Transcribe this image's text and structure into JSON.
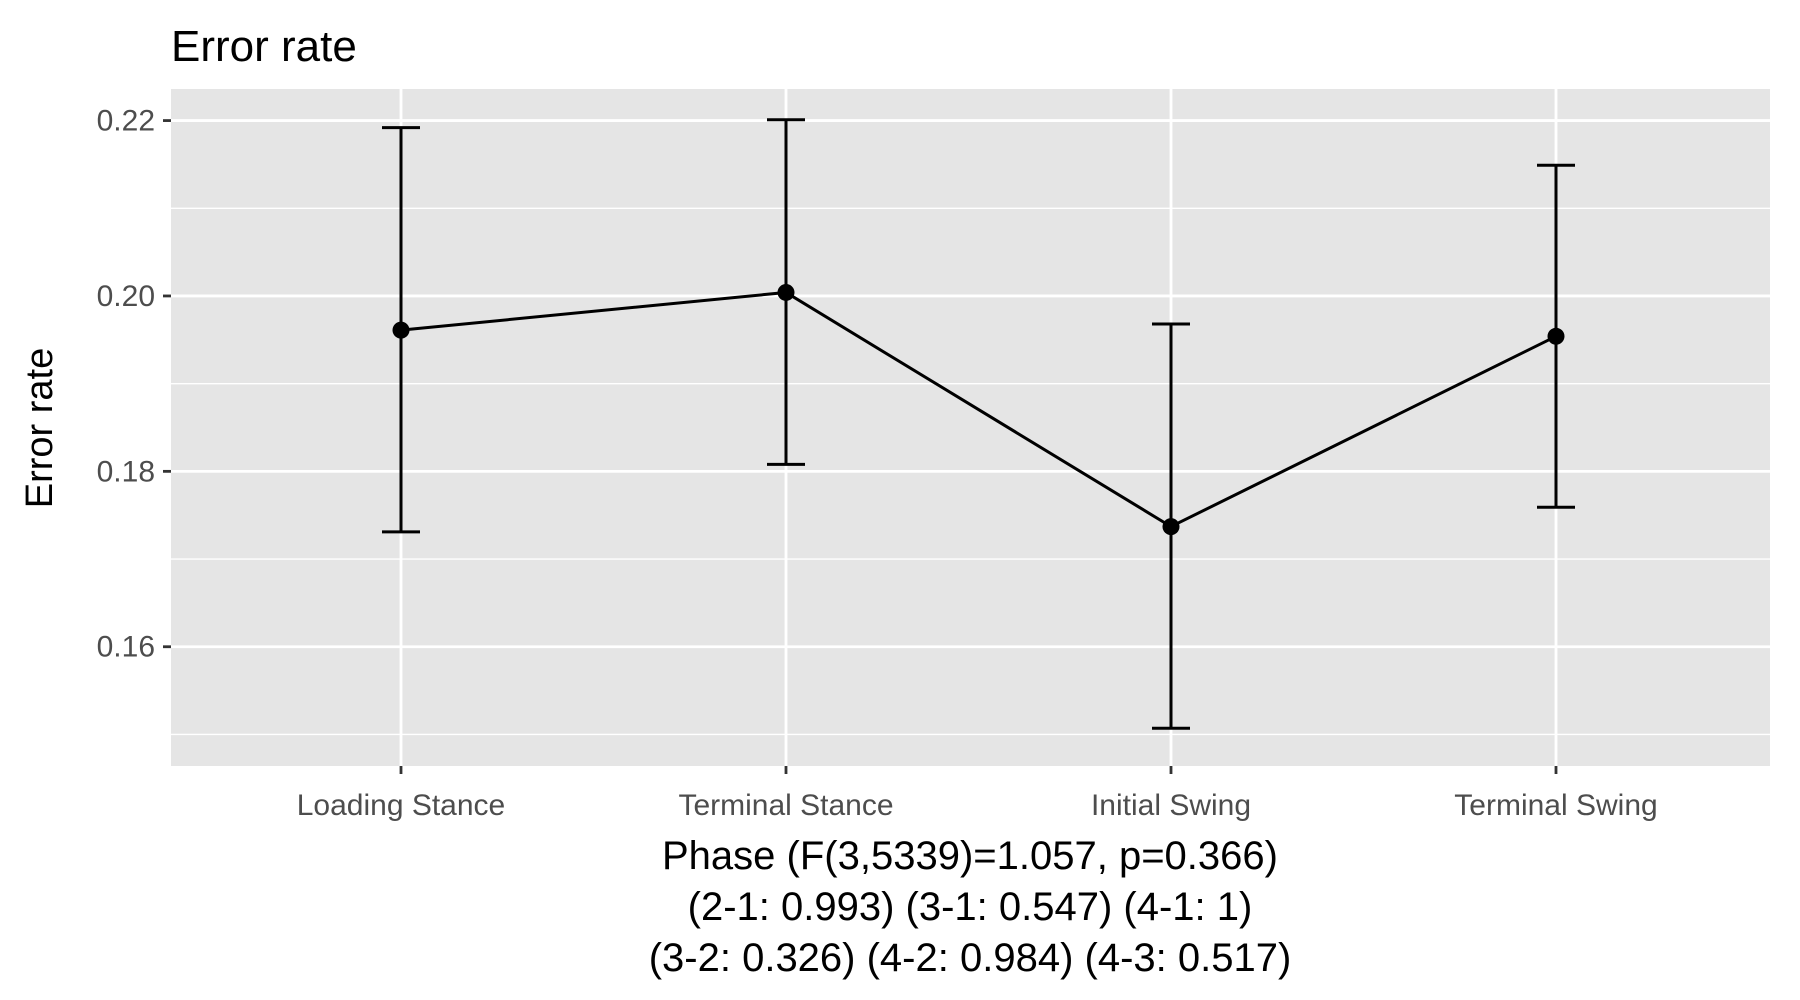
{
  "chart_data": {
    "type": "line",
    "title": "Error rate",
    "ylabel": "Error rate",
    "xlabel_lines": [
      "Phase (F(3,5339)=1.057, p=0.366)",
      "(2-1: 0.993) (3-1: 0.547) (4-1: 1)",
      "(3-2: 0.326) (4-2: 0.984) (4-3: 0.517)"
    ],
    "categories": [
      "Loading Stance",
      "Terminal Stance",
      "Initial Swing",
      "Terminal Swing"
    ],
    "values": [
      0.1961,
      0.2004,
      0.1737,
      0.1954
    ],
    "error_lower": [
      0.1731,
      0.1808,
      0.1507,
      0.1759
    ],
    "error_upper": [
      0.2192,
      0.2201,
      0.1968,
      0.2149
    ],
    "ylim": [
      0.1464,
      0.2236
    ],
    "y_ticks": [
      0.16,
      0.18,
      0.2,
      0.22
    ],
    "y_tick_labels": [
      "0.16",
      "0.18",
      "0.20",
      "0.22"
    ],
    "y_minor_ticks": [
      0.15,
      0.17,
      0.19,
      0.21
    ],
    "grid": true,
    "legend": "none",
    "colors": {
      "panel_background": "#e5e5e5",
      "grid": "#ffffff",
      "series": "#000000",
      "tick_text": "#4d4d4d",
      "tick_mark": "#333333"
    }
  }
}
